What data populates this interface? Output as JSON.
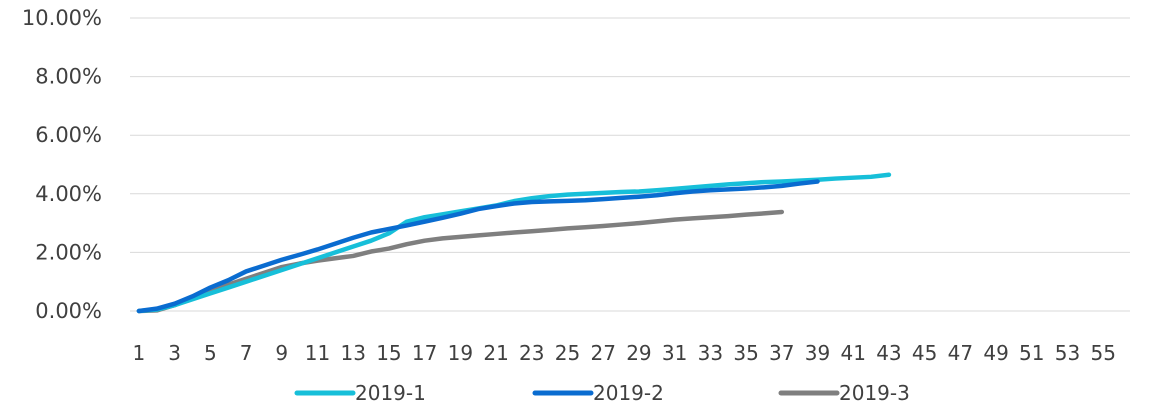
{
  "chart_data": {
    "type": "line",
    "title": "",
    "xlabel": "",
    "ylabel": "",
    "ylim": [
      0,
      10
    ],
    "yticks": [
      "0.00%",
      "2.00%",
      "4.00%",
      "6.00%",
      "8.00%",
      "10.00%"
    ],
    "x_range": [
      1,
      56
    ],
    "xtick_labels": [
      "1",
      "3",
      "5",
      "7",
      "9",
      "11",
      "13",
      "15",
      "17",
      "19",
      "21",
      "23",
      "25",
      "27",
      "29",
      "31",
      "33",
      "35",
      "37",
      "39",
      "41",
      "43",
      "45",
      "47",
      "49",
      "51",
      "53",
      "55"
    ],
    "grid": "horizontal",
    "legend_position": "bottom",
    "series": [
      {
        "name": "2019-1",
        "color": "#17BFD9",
        "values": [
          0.0,
          0.05,
          0.2,
          0.4,
          0.6,
          0.8,
          1.0,
          1.2,
          1.4,
          1.6,
          1.8,
          2.0,
          2.2,
          2.4,
          2.65,
          3.05,
          3.2,
          3.3,
          3.4,
          3.5,
          3.6,
          3.75,
          3.85,
          3.92,
          3.97,
          4.0,
          4.03,
          4.06,
          4.08,
          4.12,
          4.17,
          4.22,
          4.27,
          4.32,
          4.36,
          4.4,
          4.42,
          4.45,
          4.48,
          4.52,
          4.55,
          4.58,
          4.65
        ]
      },
      {
        "name": "2019-2",
        "color": "#0A6CD0",
        "values": [
          0.0,
          0.08,
          0.25,
          0.5,
          0.8,
          1.05,
          1.35,
          1.55,
          1.75,
          1.92,
          2.1,
          2.3,
          2.5,
          2.68,
          2.8,
          2.92,
          3.05,
          3.18,
          3.32,
          3.48,
          3.58,
          3.67,
          3.72,
          3.74,
          3.76,
          3.78,
          3.82,
          3.86,
          3.9,
          3.95,
          4.02,
          4.08,
          4.12,
          4.15,
          4.18,
          4.22,
          4.27,
          4.35,
          4.42
        ]
      },
      {
        "name": "2019-3",
        "color": "#7F7F7F",
        "values": [
          0.0,
          0.02,
          0.2,
          0.45,
          0.7,
          0.9,
          1.1,
          1.3,
          1.5,
          1.62,
          1.72,
          1.8,
          1.88,
          2.03,
          2.13,
          2.28,
          2.4,
          2.48,
          2.53,
          2.58,
          2.63,
          2.68,
          2.72,
          2.77,
          2.82,
          2.86,
          2.9,
          2.95,
          3.0,
          3.06,
          3.12,
          3.16,
          3.2,
          3.24,
          3.29,
          3.33,
          3.38
        ]
      }
    ]
  }
}
